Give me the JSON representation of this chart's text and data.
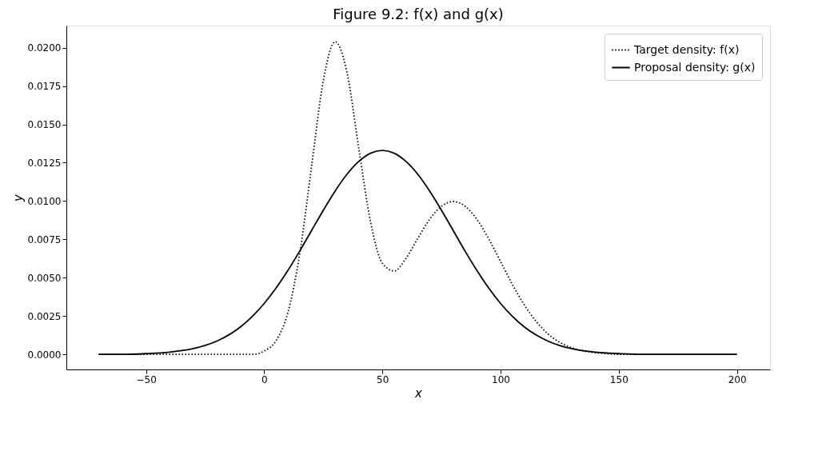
{
  "chart_data": {
    "type": "line",
    "title": "Figure 9.2: f(x) and g(x)",
    "xlabel": "x",
    "ylabel": "y",
    "x": [
      -70,
      -60,
      -50,
      -40,
      -30,
      -20,
      -10,
      -5,
      0,
      5,
      10,
      15,
      20,
      25,
      30,
      35,
      40,
      45,
      50,
      55,
      60,
      65,
      70,
      75,
      80,
      85,
      90,
      95,
      100,
      105,
      110,
      115,
      120,
      125,
      130,
      135,
      140,
      145,
      150,
      160,
      170,
      180,
      190,
      200
    ],
    "series": [
      {
        "name": "Target density: f(x)",
        "color": "#000000",
        "line_style": "dotted",
        "values": [
          0,
          0,
          0,
          0,
          0,
          0,
          0,
          0,
          0.00022,
          0.00089,
          0.00272,
          0.00653,
          0.01221,
          0.01784,
          0.02039,
          0.0184,
          0.01345,
          0.00864,
          0.00594,
          0.00544,
          0.00627,
          0.00757,
          0.00881,
          0.00966,
          0.00997,
          0.00966,
          0.0088,
          0.00753,
          0.00605,
          0.00456,
          0.00324,
          0.00216,
          0.00135,
          0.00079,
          0.00044,
          0.00023,
          0.00011,
          5e-05,
          0,
          0,
          0,
          0,
          0,
          0
        ]
      },
      {
        "name": "Proposal density: g(x)",
        "color": "#000000",
        "line_style": "solid",
        "values": [
          0,
          0,
          5e-05,
          0.00015,
          0.00038,
          0.00087,
          0.0018,
          0.00248,
          0.00332,
          0.00432,
          0.00547,
          0.00673,
          0.00807,
          0.0094,
          0.01065,
          0.01174,
          0.01258,
          0.01312,
          0.0133,
          0.01312,
          0.01258,
          0.01174,
          0.01065,
          0.0094,
          0.00807,
          0.00673,
          0.00547,
          0.00432,
          0.00332,
          0.00248,
          0.0018,
          0.00127,
          0.00087,
          0.00058,
          0.00038,
          0.00024,
          0.00015,
          9e-05,
          5e-05,
          0,
          0,
          0,
          0,
          0
        ]
      }
    ],
    "xlim": [
      -83.7,
      214
    ],
    "ylim": [
      -0.00098,
      0.02144
    ],
    "xticks": [
      -50,
      0,
      50,
      100,
      150,
      200
    ],
    "yticks": [
      {
        "value": 0,
        "label": "0.0000"
      },
      {
        "value": 0.0025,
        "label": "0.0025"
      },
      {
        "value": 0.005,
        "label": "0.0050"
      },
      {
        "value": 0.0075,
        "label": "0.0075"
      },
      {
        "value": 0.01,
        "label": "0.0100"
      },
      {
        "value": 0.0125,
        "label": "0.0125"
      },
      {
        "value": 0.015,
        "label": "0.0150"
      },
      {
        "value": 0.0175,
        "label": "0.0175"
      },
      {
        "value": 0.02,
        "label": "0.0200"
      }
    ],
    "grid": false,
    "legend": "top right",
    "marker": "none"
  }
}
